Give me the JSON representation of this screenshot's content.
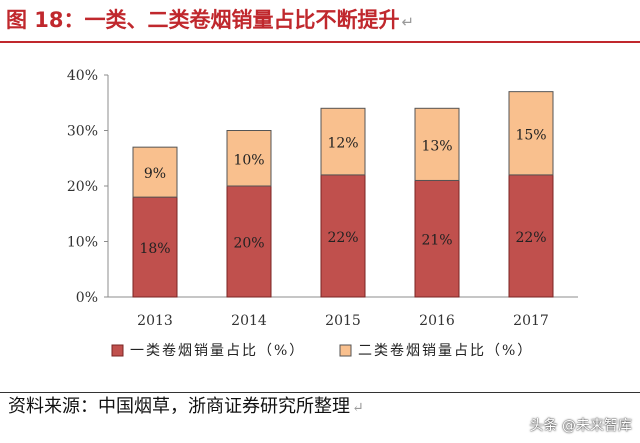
{
  "header": {
    "title": "图 18：一类、二类卷烟销量占比不断提升",
    "mark": "↵"
  },
  "footer": {
    "source": "资料来源：中国烟草，浙商证券研究所整理",
    "mark": "↵",
    "watermark": "头条 @未来智库"
  },
  "colors": {
    "series1": "#c0504d",
    "series2": "#f9c08e",
    "series1_edge": "#7a2523",
    "series2_edge": "#555555",
    "title": "#c0282d"
  },
  "chart_data": {
    "type": "bar",
    "stacked": true,
    "categories": [
      "2013",
      "2014",
      "2015",
      "2016",
      "2017"
    ],
    "series": [
      {
        "name": "一类卷烟销量占比（%）",
        "values": [
          18,
          20,
          22,
          21,
          22
        ],
        "labels": [
          "18%",
          "20%",
          "22%",
          "21%",
          "22%"
        ]
      },
      {
        "name": "二类卷烟销量占比（%）",
        "values": [
          9,
          10,
          12,
          13,
          15
        ],
        "labels": [
          "9%",
          "10%",
          "12%",
          "13%",
          "15%"
        ]
      }
    ],
    "ylim": [
      0,
      40
    ],
    "yticks": [
      "0%",
      "10%",
      "20%",
      "30%",
      "40%"
    ],
    "xlabel": "",
    "ylabel": "",
    "grid": false,
    "legend": "bottom"
  }
}
